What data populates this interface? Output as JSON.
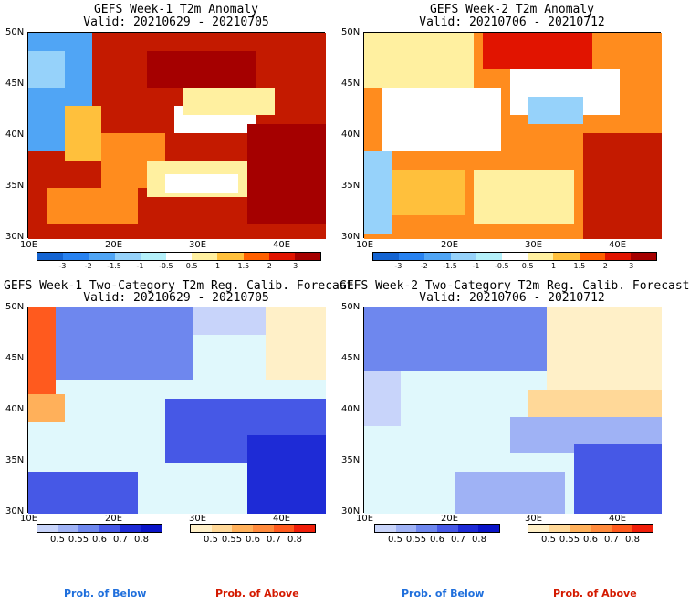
{
  "panels": [
    {
      "title": "GEFS Week-1 T2m Anomaly",
      "valid": "Valid: 20210629 - 20210705"
    },
    {
      "title": "GEFS Week-2 T2m Anomaly",
      "valid": "Valid: 20210706 - 20210712"
    },
    {
      "title": "GEFS Week-1 Two-Category T2m Reg. Calib. Forecast",
      "valid": "Valid: 20210629 - 20210705"
    },
    {
      "title": "GEFS Week-2 Two-Category T2m Reg. Calib. Forecast",
      "valid": "Valid: 20210706 - 20210712"
    }
  ],
  "lat_labels": [
    "50N",
    "45N",
    "40N",
    "35N",
    "30N"
  ],
  "lon_labels": [
    "10E",
    "20E",
    "30E",
    "40E"
  ],
  "anomaly_scale": {
    "ticks": [
      "-3",
      "-2",
      "-1.5",
      "-1",
      "-0.5",
      "0.5",
      "1",
      "1.5",
      "2",
      "3"
    ],
    "colors": [
      "#1464d2",
      "#2882f0",
      "#50a5f5",
      "#96d2fa",
      "#b4f0fa",
      "#ffffff",
      "#fff0a0",
      "#ffc03c",
      "#ff6000",
      "#e11400",
      "#a50000"
    ]
  },
  "prob_below": {
    "ticks": [
      "0.5",
      "0.55",
      "0.6",
      "0.7",
      "0.8"
    ],
    "colors": [
      "#c8d4fa",
      "#9fb2f5",
      "#6e87ee",
      "#4658e6",
      "#1e2bd6",
      "#0a14c8"
    ],
    "label": "Prob. of Below"
  },
  "prob_above": {
    "ticks": [
      "0.5",
      "0.55",
      "0.6",
      "0.7",
      "0.8"
    ],
    "colors": [
      "#fff0c8",
      "#ffd898",
      "#ffb05a",
      "#ff8a3c",
      "#ff5a1e",
      "#f01e0a"
    ],
    "label": "Prob. of Above"
  },
  "colors": {
    "sea_prob": "#e0f8fc",
    "land_hot": "#c41a00",
    "land_warm": "#ff8c1e",
    "legend_blue": "#1f6fdc",
    "legend_red": "#d41a00"
  }
}
